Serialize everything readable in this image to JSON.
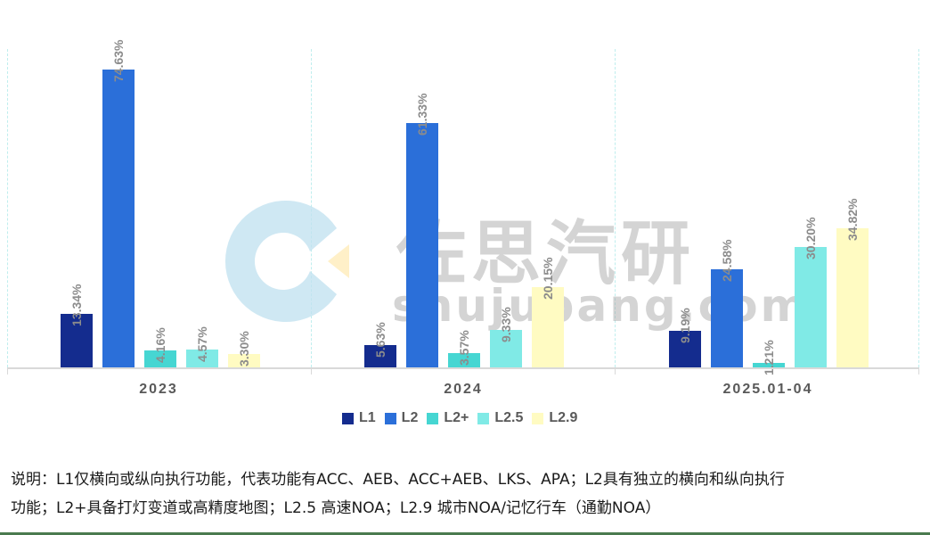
{
  "chart_data": {
    "type": "bar",
    "title": "",
    "xlabel": "",
    "ylabel": "",
    "ylim": [
      0,
      80
    ],
    "grid": "vertical dashed separators between categories",
    "legend_position": "bottom",
    "categories": [
      "2023",
      "2024",
      "2025.01-04"
    ],
    "series": [
      {
        "name": "L1",
        "color": "#142c8e",
        "values": [
          13.34,
          5.63,
          9.19
        ],
        "labels": [
          "13.34%",
          "5.63%",
          "9.19%"
        ]
      },
      {
        "name": "L2",
        "color": "#2b6fd9",
        "values": [
          74.63,
          61.33,
          24.58
        ],
        "labels": [
          "74.63%",
          "61.33%",
          "24.58%"
        ]
      },
      {
        "name": "L2+",
        "color": "#46d6d2",
        "values": [
          4.16,
          3.57,
          1.21
        ],
        "labels": [
          "4.16%",
          "3.57%",
          "1.21%"
        ]
      },
      {
        "name": "L2.5",
        "color": "#80eae6",
        "values": [
          4.57,
          9.33,
          30.2
        ],
        "labels": [
          "4.57%",
          "9.33%",
          "30.20%"
        ]
      },
      {
        "name": "L2.9",
        "color": "#fffbc2",
        "values": [
          3.3,
          20.15,
          34.82
        ],
        "labels": [
          "3.30%",
          "20.15%",
          "34.82%"
        ]
      }
    ]
  },
  "legend": {
    "items": [
      {
        "label": "L1",
        "color": "#142c8e"
      },
      {
        "label": "L2",
        "color": "#2b6fd9"
      },
      {
        "label": "L2+",
        "color": "#46d6d2"
      },
      {
        "label": "L2.5",
        "color": "#80eae6"
      },
      {
        "label": "L2.9",
        "color": "#fffbc2"
      }
    ]
  },
  "watermark": {
    "cn": "佐思汽研",
    "en": "shujubang.com"
  },
  "note": {
    "line1": "说明：L1仅横向或纵向执行功能，代表功能有ACC、AEB、ACC+AEB、LKS、APA；L2具有独立的横向和纵向执行",
    "line2": "功能；L2+具备打灯变道或高精度地图；L2.5 高速NOA；L2.9 城市NOA/记忆行车（通勤NOA）"
  }
}
